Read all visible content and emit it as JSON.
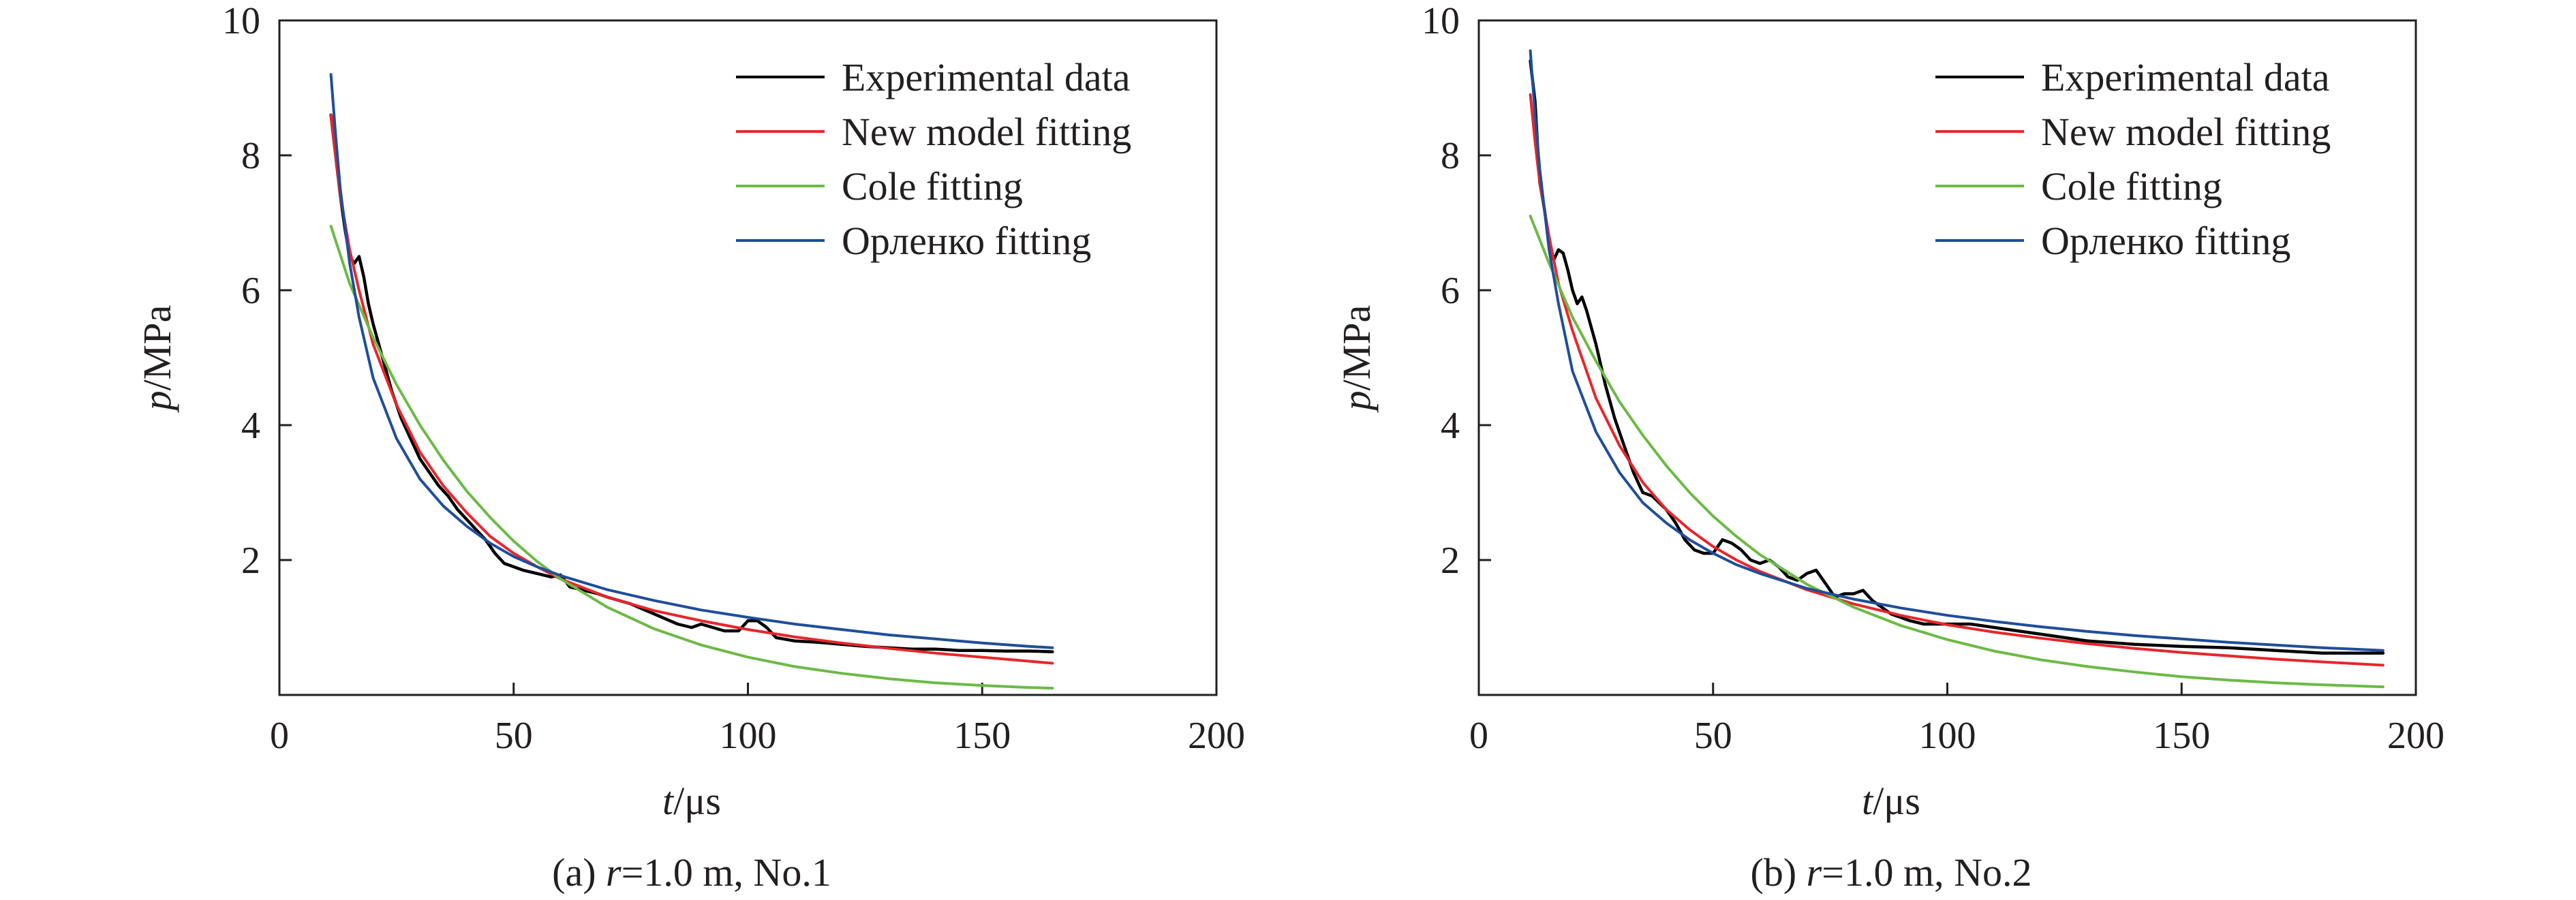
{
  "chart_data": [
    {
      "type": "line",
      "panel": "a",
      "caption": {
        "prefix": "(a) ",
        "var": "r",
        "rest": "=1.0 m, No.1"
      },
      "xlabel": {
        "var": "t",
        "unit": "/μs"
      },
      "ylabel": {
        "var": "p",
        "unit": "/MPa"
      },
      "xlim": [
        0,
        200
      ],
      "ylim": [
        0,
        10
      ],
      "xticks": [
        "0",
        "50",
        "100",
        "150",
        "200"
      ],
      "yticks": [
        "2",
        "4",
        "6",
        "8",
        "10"
      ],
      "xtick_values": [
        0,
        50,
        100,
        150,
        200
      ],
      "ytick_values": [
        2,
        4,
        6,
        8,
        10
      ],
      "grid": false,
      "legend_position": "top-right",
      "series": [
        {
          "name": "Experimental data",
          "color": "#000000",
          "x": [
            11,
            12,
            13,
            14,
            15,
            16,
            17,
            18,
            19,
            20,
            22,
            24,
            26,
            28,
            30,
            32,
            34,
            36,
            38,
            40,
            42,
            44,
            46,
            48,
            50,
            52,
            55,
            58,
            60,
            62,
            65,
            68,
            70,
            75,
            80,
            85,
            88,
            90,
            95,
            98,
            100,
            102,
            104,
            106,
            110,
            115,
            120,
            125,
            130,
            135,
            140,
            145,
            150,
            155,
            160,
            165
          ],
          "y": [
            8.6,
            8.0,
            7.4,
            6.9,
            6.5,
            6.4,
            6.5,
            6.2,
            5.8,
            5.5,
            5.0,
            4.5,
            4.1,
            3.8,
            3.5,
            3.3,
            3.1,
            2.95,
            2.75,
            2.6,
            2.45,
            2.3,
            2.1,
            1.95,
            1.9,
            1.85,
            1.8,
            1.75,
            1.78,
            1.6,
            1.55,
            1.5,
            1.45,
            1.35,
            1.2,
            1.05,
            1.0,
            1.05,
            0.95,
            0.95,
            1.1,
            1.1,
            1.0,
            0.85,
            0.8,
            0.78,
            0.75,
            0.72,
            0.7,
            0.68,
            0.68,
            0.66,
            0.66,
            0.65,
            0.65,
            0.64
          ]
        },
        {
          "name": "New model fitting",
          "color": "#e8262b",
          "x": [
            11,
            12,
            13,
            15,
            17,
            20,
            25,
            30,
            35,
            40,
            45,
            50,
            55,
            60,
            70,
            80,
            90,
            100,
            110,
            120,
            130,
            140,
            150,
            160,
            165
          ],
          "y": [
            8.6,
            8.0,
            7.4,
            6.6,
            6.0,
            5.2,
            4.3,
            3.6,
            3.1,
            2.7,
            2.35,
            2.1,
            1.9,
            1.72,
            1.45,
            1.25,
            1.1,
            0.97,
            0.86,
            0.77,
            0.69,
            0.62,
            0.56,
            0.5,
            0.47
          ]
        },
        {
          "name": "Cole fitting",
          "color": "#6cba45",
          "x": [
            11,
            15,
            20,
            25,
            30,
            35,
            40,
            45,
            50,
            55,
            60,
            70,
            80,
            90,
            100,
            110,
            120,
            130,
            140,
            150,
            160,
            165
          ],
          "y": [
            6.95,
            6.1,
            5.3,
            4.6,
            4.0,
            3.48,
            3.02,
            2.63,
            2.28,
            1.98,
            1.72,
            1.3,
            0.98,
            0.74,
            0.56,
            0.42,
            0.32,
            0.24,
            0.18,
            0.14,
            0.11,
            0.1
          ]
        },
        {
          "name": "Орленко fitting",
          "color": "#1f4e9a",
          "x": [
            11,
            12,
            13,
            15,
            17,
            20,
            25,
            30,
            35,
            40,
            45,
            50,
            55,
            60,
            70,
            80,
            90,
            100,
            110,
            120,
            130,
            140,
            150,
            160,
            165
          ],
          "y": [
            9.2,
            8.3,
            7.5,
            6.4,
            5.6,
            4.7,
            3.8,
            3.2,
            2.8,
            2.5,
            2.25,
            2.05,
            1.9,
            1.77,
            1.56,
            1.4,
            1.26,
            1.15,
            1.05,
            0.97,
            0.89,
            0.83,
            0.77,
            0.72,
            0.7
          ]
        }
      ]
    },
    {
      "type": "line",
      "panel": "b",
      "caption": {
        "prefix": "(b) ",
        "var": "r",
        "rest": "=1.0 m, No.2"
      },
      "xlabel": {
        "var": "t",
        "unit": "/μs"
      },
      "ylabel": {
        "var": "p",
        "unit": "/MPa"
      },
      "xlim": [
        0,
        200
      ],
      "ylim": [
        0,
        10
      ],
      "xticks": [
        "0",
        "50",
        "100",
        "150",
        "200"
      ],
      "yticks": [
        "2",
        "4",
        "6",
        "8",
        "10"
      ],
      "xtick_values": [
        0,
        50,
        100,
        150,
        200
      ],
      "ytick_values": [
        2,
        4,
        6,
        8,
        10
      ],
      "grid": false,
      "legend_position": "top-right",
      "series": [
        {
          "name": "Experimental data",
          "color": "#000000",
          "x": [
            11,
            12,
            13,
            14,
            15,
            16,
            17,
            18,
            19,
            20,
            21,
            22,
            23,
            25,
            27,
            29,
            31,
            33,
            35,
            37,
            40,
            42,
            44,
            46,
            48,
            50,
            52,
            54,
            56,
            58,
            60,
            62,
            64,
            66,
            68,
            70,
            72,
            74,
            76,
            78,
            80,
            82,
            84,
            86,
            88,
            90,
            92,
            95,
            100,
            105,
            110,
            115,
            120,
            125,
            130,
            140,
            150,
            160,
            170,
            180,
            190,
            193
          ],
          "y": [
            9.4,
            8.8,
            7.6,
            7.2,
            6.7,
            6.45,
            6.6,
            6.55,
            6.3,
            6.0,
            5.8,
            5.9,
            5.7,
            5.2,
            4.6,
            4.1,
            3.7,
            3.3,
            3.0,
            2.95,
            2.75,
            2.55,
            2.3,
            2.15,
            2.1,
            2.1,
            2.3,
            2.25,
            2.15,
            2.0,
            1.95,
            2.0,
            1.9,
            1.75,
            1.7,
            1.8,
            1.85,
            1.65,
            1.45,
            1.5,
            1.5,
            1.55,
            1.4,
            1.3,
            1.2,
            1.15,
            1.1,
            1.05,
            1.05,
            1.05,
            1.0,
            0.95,
            0.9,
            0.85,
            0.8,
            0.75,
            0.72,
            0.7,
            0.66,
            0.62,
            0.62,
            0.62
          ]
        },
        {
          "name": "New model fitting",
          "color": "#e8262b",
          "x": [
            11,
            12,
            13,
            15,
            17,
            20,
            25,
            30,
            35,
            40,
            45,
            50,
            55,
            60,
            70,
            80,
            90,
            100,
            110,
            120,
            130,
            140,
            150,
            160,
            170,
            180,
            193
          ],
          "y": [
            8.9,
            8.2,
            7.6,
            6.8,
            6.1,
            5.4,
            4.4,
            3.7,
            3.15,
            2.75,
            2.45,
            2.2,
            2.0,
            1.83,
            1.56,
            1.35,
            1.18,
            1.04,
            0.93,
            0.84,
            0.76,
            0.69,
            0.63,
            0.58,
            0.53,
            0.49,
            0.44
          ]
        },
        {
          "name": "Cole fitting",
          "color": "#6cba45",
          "x": [
            11,
            15,
            20,
            25,
            30,
            35,
            40,
            45,
            50,
            55,
            60,
            70,
            80,
            90,
            100,
            110,
            120,
            130,
            140,
            150,
            160,
            170,
            180,
            193
          ],
          "y": [
            7.1,
            6.4,
            5.6,
            4.95,
            4.35,
            3.85,
            3.4,
            3.0,
            2.65,
            2.35,
            2.08,
            1.64,
            1.3,
            1.03,
            0.82,
            0.65,
            0.52,
            0.42,
            0.34,
            0.27,
            0.22,
            0.18,
            0.15,
            0.12
          ]
        },
        {
          "name": "Орленко fitting",
          "color": "#1f4e9a",
          "x": [
            11,
            12,
            13,
            15,
            17,
            20,
            25,
            30,
            35,
            40,
            45,
            50,
            55,
            60,
            70,
            80,
            90,
            100,
            110,
            120,
            130,
            140,
            150,
            160,
            170,
            180,
            193
          ],
          "y": [
            9.55,
            8.6,
            7.8,
            6.6,
            5.8,
            4.8,
            3.9,
            3.3,
            2.85,
            2.55,
            2.3,
            2.1,
            1.93,
            1.8,
            1.58,
            1.42,
            1.29,
            1.18,
            1.09,
            1.01,
            0.94,
            0.88,
            0.83,
            0.78,
            0.74,
            0.7,
            0.66
          ]
        }
      ]
    }
  ]
}
